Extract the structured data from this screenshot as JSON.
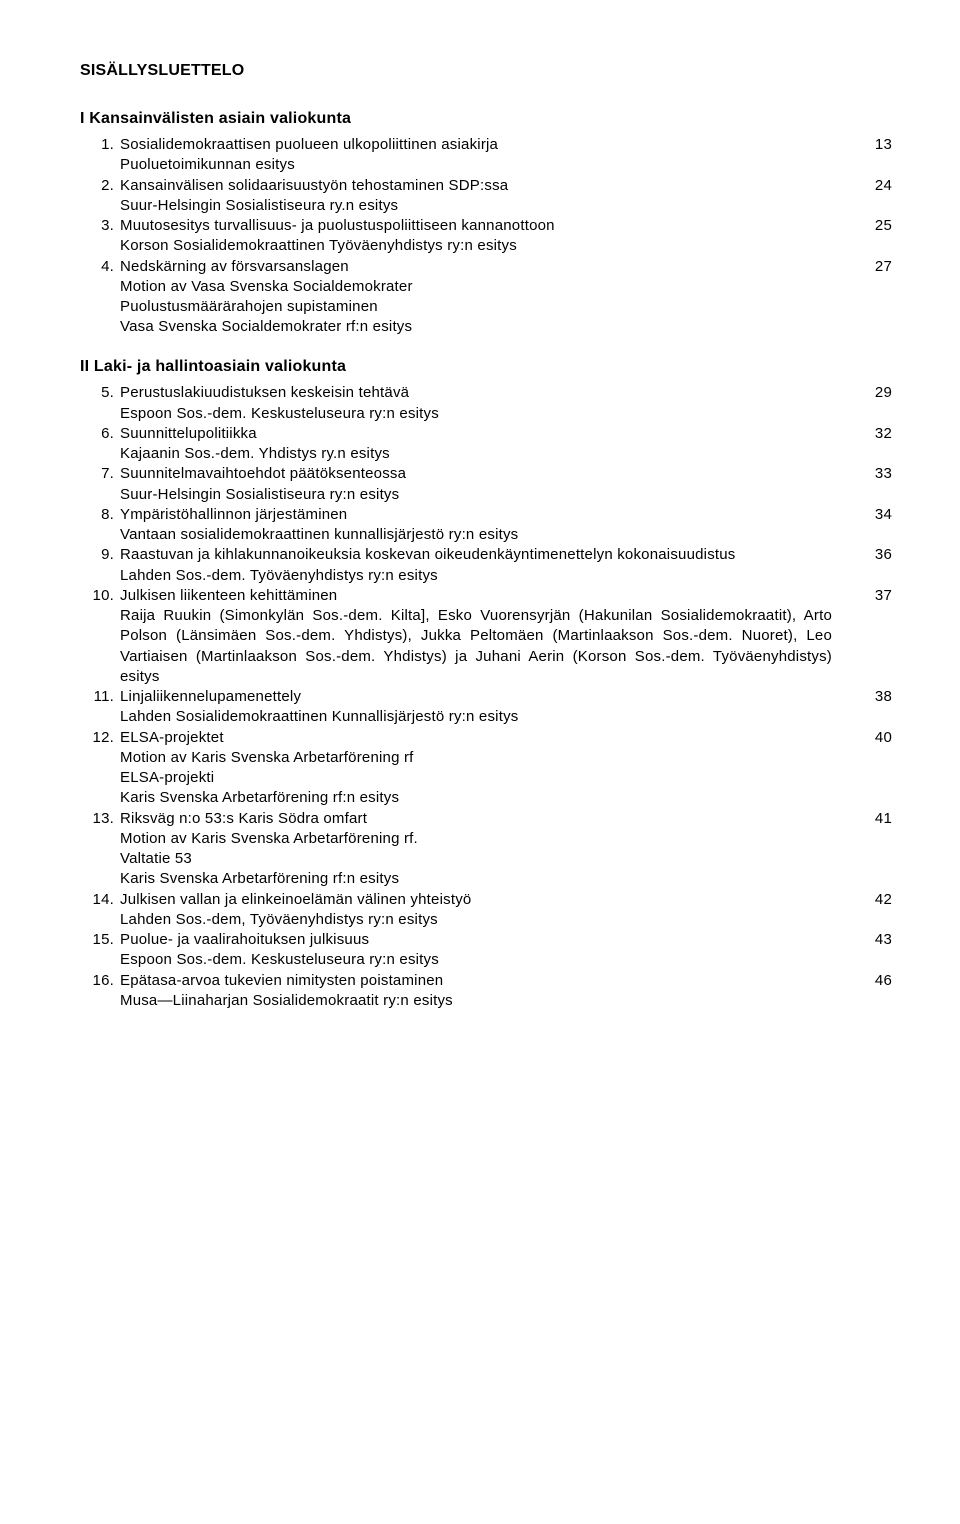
{
  "title": "SISÄLLYSLUETTELO",
  "section1": {
    "head": "I   Kansainvälisten asiain valiokunta",
    "items": [
      {
        "n": "1.",
        "t": "Sosialidemokraattisen puolueen ulkopoliittinen asiakirja",
        "p": "13",
        "sub": "Puoluetoimikunnan esitys"
      },
      {
        "n": "2.",
        "t": "Kansainvälisen solidaarisuustyön tehostaminen SDP:ssa",
        "p": "24",
        "sub": "Suur-Helsingin Sosialistiseura ry.n esitys"
      },
      {
        "n": "3.",
        "t": "Muutosesitys turvallisuus- ja puolustuspoliittiseen kannanottoon",
        "p": "25",
        "sub": "Korson Sosialidemokraattinen Työväenyhdistys ry:n esitys"
      },
      {
        "n": "4.",
        "t": "Nedskärning av försvarsanslagen",
        "p": "27",
        "sub": "Motion av Vasa Svenska Socialdemokrater\nPuolustusmäärärahojen supistaminen\nVasa Svenska Socialdemokrater rf:n esitys"
      }
    ]
  },
  "section2": {
    "head": "II   Laki- ja hallintoasiain valiokunta",
    "items": [
      {
        "n": "5.",
        "t": "Perustuslakiuudistuksen keskeisin tehtävä",
        "p": "29",
        "sub": "Espoon Sos.-dem. Keskusteluseura ry:n esitys"
      },
      {
        "n": "6.",
        "t": "Suunnittelupolitiikka",
        "p": "32",
        "sub": "Kajaanin Sos.-dem. Yhdistys ry.n esitys"
      },
      {
        "n": "7.",
        "t": "Suunnitelmavaihtoehdot päätöksenteossa",
        "p": "33",
        "sub": "Suur-Helsingin Sosialistiseura ry:n esitys"
      },
      {
        "n": "8.",
        "t": "Ympäristöhallinnon järjestäminen",
        "p": "34",
        "sub": "Vantaan sosialidemokraattinen kunnallisjärjestö ry:n esitys"
      },
      {
        "n": "9.",
        "t": "Raastuvan ja kihlakunnanoikeuksia koskevan oikeudenkäyntimenettelyn kokonaisuudistus",
        "p": "36",
        "sub": "Lahden Sos.-dem. Työväenyhdistys ry:n esitys"
      },
      {
        "n": "10.",
        "t": "Julkisen liikenteen kehittäminen",
        "p": "37",
        "sub": "Raija Ruukin (Simonkylän Sos.-dem. Kilta], Esko Vuorensyrjän (Hakunilan Sosialidemokraatit), Arto Polson (Länsimäen Sos.-dem. Yhdistys), Jukka Peltomäen (Martinlaakson Sos.-dem. Nuoret), Leo Vartiaisen (Martinlaakson Sos.-dem. Yhdistys) ja Juhani Aerin (Korson Sos.-dem. Työväenyhdistys) esitys"
      },
      {
        "n": "11.",
        "t": "Linjaliikennelupamenettely",
        "p": "38",
        "sub": "Lahden Sosialidemokraattinen Kunnallisjärjestö ry:n esitys"
      },
      {
        "n": "12.",
        "t": "ELSA-projektet",
        "p": "40",
        "sub": "Motion av Karis Svenska Arbetarförening rf\nELSA-projekti\nKaris Svenska Arbetarförening rf:n esitys"
      },
      {
        "n": "13.",
        "t": "Riksväg n:o 53:s Karis Södra omfart",
        "p": "41",
        "sub": "Motion av Karis Svenska Arbetarförening rf.\nValtatie 53\nKaris Svenska Arbetarförening rf:n esitys"
      },
      {
        "n": "14.",
        "t": "Julkisen vallan ja elinkeinoelämän välinen yhteistyö",
        "p": "42",
        "sub": "Lahden Sos.-dem, Työväenyhdistys ry:n esitys"
      },
      {
        "n": "15.",
        "t": "Puolue- ja vaalirahoituksen julkisuus",
        "p": "43",
        "sub": "Espoon Sos.-dem. Keskusteluseura ry:n esitys"
      },
      {
        "n": "16.",
        "t": "Epätasa-arvoa tukevien nimitysten poistaminen",
        "p": "46",
        "sub": "Musa—Liinaharjan Sosialidemokraatit ry:n esitys"
      }
    ]
  }
}
